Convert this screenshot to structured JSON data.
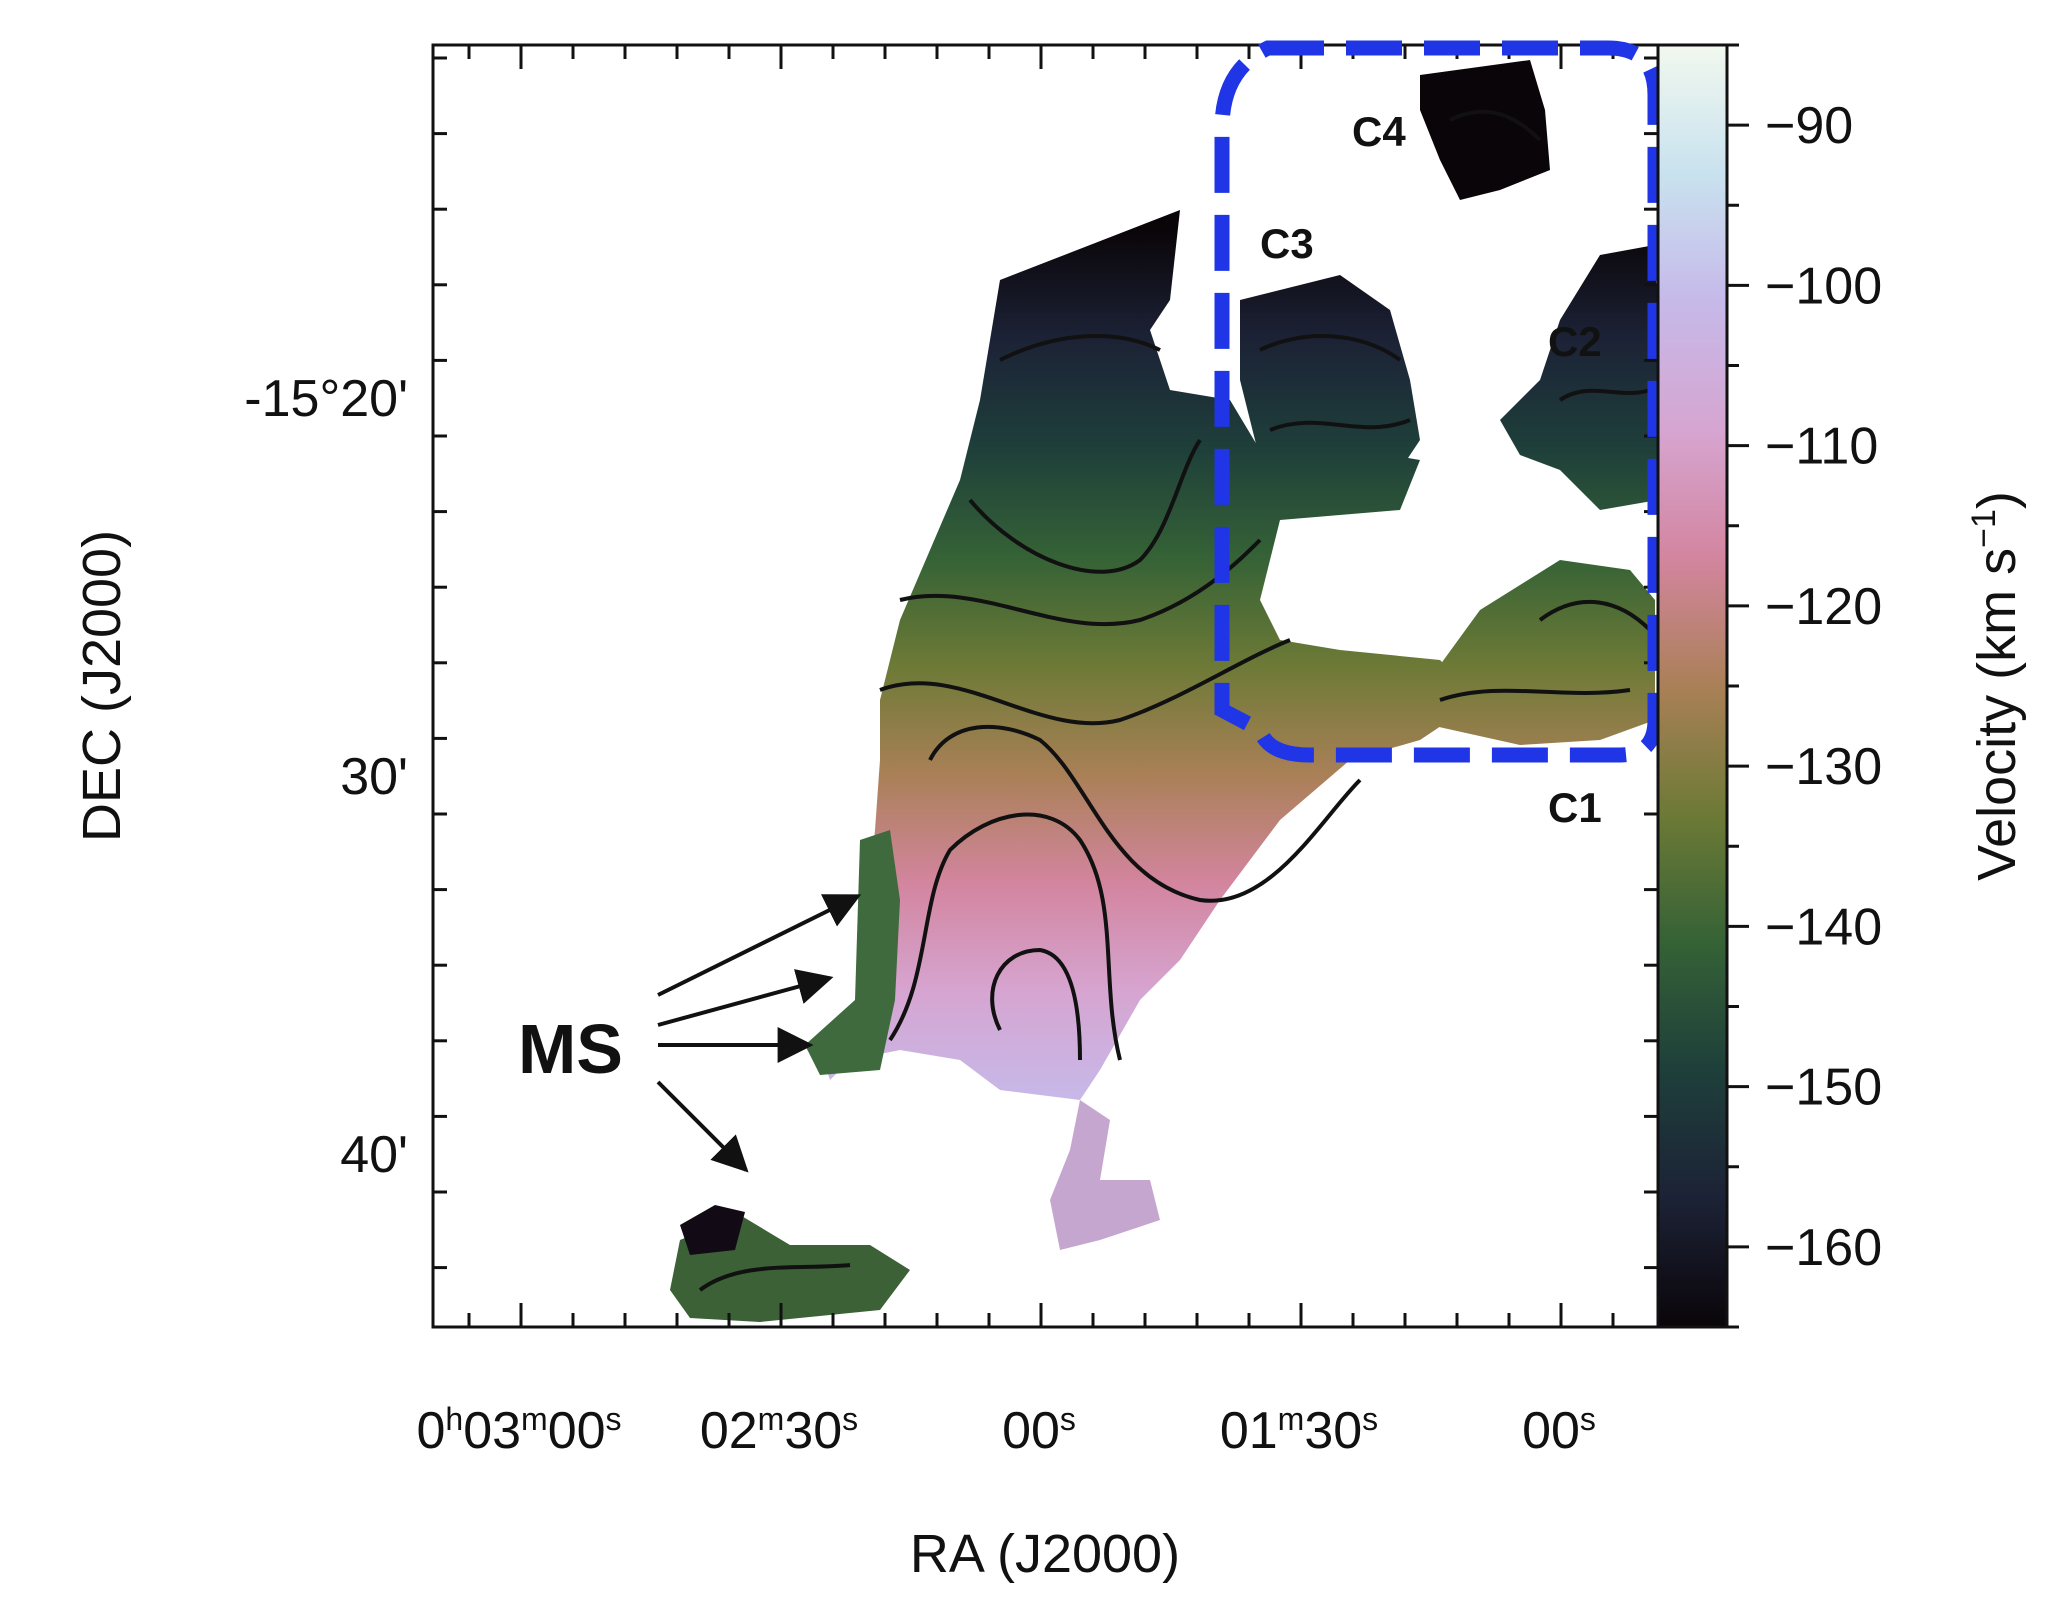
{
  "chart_data": {
    "type": "heatmap",
    "title": "",
    "xlabel": "RA (J2000)",
    "ylabel": "DEC (J2000)",
    "x_tick_labels": [
      {
        "parts": [
          [
            "0",
            "n"
          ],
          [
            "h",
            "s"
          ],
          [
            "03",
            "n"
          ],
          [
            "m",
            "s"
          ],
          [
            "00",
            "n"
          ],
          [
            "s",
            "s"
          ]
        ]
      },
      {
        "parts": [
          [
            "02",
            "n"
          ],
          [
            "m",
            "s"
          ],
          [
            "30",
            "n"
          ],
          [
            "s",
            "s"
          ]
        ]
      },
      {
        "parts": [
          [
            "00",
            "n"
          ],
          [
            "s",
            "s"
          ]
        ]
      },
      {
        "parts": [
          [
            "01",
            "n"
          ],
          [
            "m",
            "s"
          ],
          [
            "30",
            "n"
          ],
          [
            "s",
            "s"
          ]
        ]
      },
      {
        "parts": [
          [
            "00",
            "n"
          ],
          [
            "s",
            "s"
          ]
        ]
      }
    ],
    "y_tick_labels": [
      "-15°20'",
      "30'",
      "40'"
    ],
    "colorbar": {
      "label_text": "Velocity (km s",
      "label_exp": "−1",
      "label_close": ")",
      "range": [
        -165,
        -85
      ],
      "tick_values": [
        -90,
        -100,
        -110,
        -120,
        -130,
        -140,
        -150,
        -160
      ],
      "tick_labels": [
        "−90",
        "−100",
        "−110",
        "−120",
        "−130",
        "−140",
        "−150",
        "−160"
      ],
      "colormap": [
        "#f1f8ef",
        "#c9e2ef",
        "#c6b9e9",
        "#d6a5d1",
        "#d3859f",
        "#aa8057",
        "#6d7a36",
        "#356236",
        "#1e3f3a",
        "#1c2236",
        "#0a0509"
      ]
    },
    "annotations": {
      "regions": [
        "C1",
        "C2",
        "C3",
        "C4"
      ],
      "stream_label": "MS",
      "box_color": "#1f35e6"
    }
  }
}
